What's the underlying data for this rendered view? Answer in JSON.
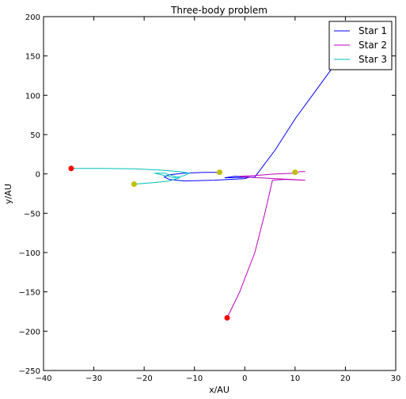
{
  "chart_data": {
    "type": "line",
    "title": "Three-body problem",
    "xlabel": "x/AU",
    "ylabel": "y/AU",
    "xlim": [
      -40,
      30
    ],
    "ylim": [
      -250,
      200
    ],
    "xticks": [
      -40,
      -30,
      -20,
      -10,
      0,
      10,
      20,
      30
    ],
    "yticks": [
      -250,
      -200,
      -150,
      -100,
      -50,
      0,
      50,
      100,
      150,
      200
    ],
    "grid": false,
    "legend": {
      "placement": "top-right",
      "entries": [
        "Star 1",
        "Star 2",
        "Star 3"
      ]
    },
    "series": [
      {
        "name": "Star 1",
        "color": "#0000ff",
        "x": [
          -5,
          -8,
          -12,
          -15,
          -16,
          -15,
          -12,
          -6,
          0,
          1,
          -2,
          -4,
          2,
          6,
          10,
          14,
          18,
          21
        ],
        "y": [
          2,
          2,
          1,
          -1,
          -4,
          -7,
          -9,
          -8,
          -6,
          -4,
          -3,
          -5,
          -4,
          30,
          70,
          105,
          140,
          168
        ]
      },
      {
        "name": "Star 2",
        "color": "#bf00bf",
        "x": [
          -3.5,
          -1,
          2,
          4,
          5.5,
          8,
          12,
          6,
          0,
          -1,
          2,
          6,
          10,
          11,
          12
        ],
        "y": [
          -183,
          -150,
          -100,
          -50,
          -8,
          -7,
          -8,
          -6,
          -4,
          -3,
          -2,
          0,
          1,
          3,
          3
        ]
      },
      {
        "name": "Star 3",
        "color": "#00bfbf",
        "x": [
          -34.5,
          -28,
          -22,
          -17,
          -13,
          -11,
          -12,
          -14,
          -18,
          -16,
          -13,
          -15,
          -18,
          -22
        ],
        "y": [
          7,
          7,
          6.5,
          5,
          3,
          1,
          -2,
          -5,
          1,
          1,
          -5,
          -9,
          -11,
          -13
        ]
      }
    ],
    "markers": [
      {
        "x": -34.5,
        "y": 7,
        "color": "#ff0000"
      },
      {
        "x": -3.5,
        "y": -183,
        "color": "#ff0000"
      },
      {
        "x": 20,
        "y": 168,
        "color": "#ff0000"
      },
      {
        "x": -22,
        "y": -13,
        "color": "#bfbf00"
      },
      {
        "x": -5,
        "y": 2,
        "color": "#bfbf00"
      },
      {
        "x": 10,
        "y": 2,
        "color": "#bfbf00"
      }
    ]
  }
}
